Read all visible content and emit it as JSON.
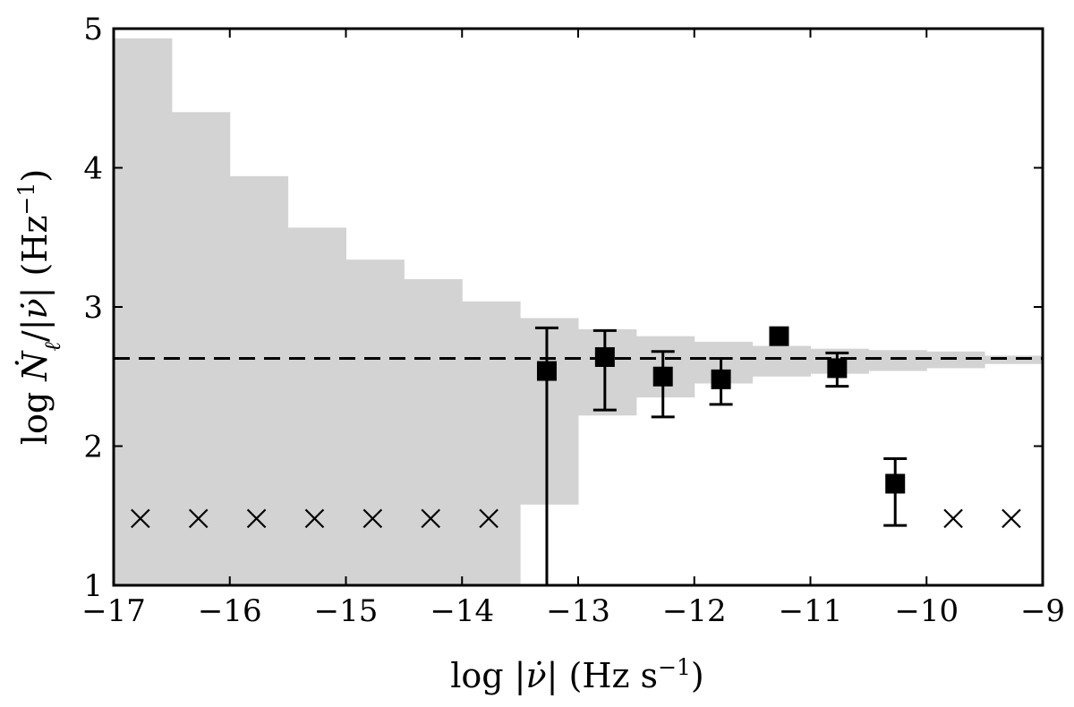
{
  "chart_data": {
    "type": "scatter",
    "xlabel": "log |ν̇| (Hz s−1)",
    "ylabel": "log Ṅℓ/|ν̇| (Hz−1)",
    "xlim": [
      -17,
      -9
    ],
    "ylim": [
      1,
      5
    ],
    "x_ticks": [
      -17,
      -16,
      -15,
      -14,
      -13,
      -12,
      -11,
      -10,
      -9
    ],
    "x_tick_labels": [
      "−17",
      "−16",
      "−15",
      "−14",
      "−13",
      "−12",
      "−11",
      "−10",
      "−9"
    ],
    "y_ticks": [
      1,
      2,
      3,
      4,
      5
    ],
    "y_tick_labels": [
      "1",
      "2",
      "3",
      "4",
      "5"
    ],
    "grid": false,
    "reference_line": {
      "y": 2.63,
      "style": "dashed"
    },
    "shaded_band": {
      "bin_edges": [
        -17,
        -16.5,
        -16,
        -15.5,
        -15,
        -14.5,
        -14,
        -13.5,
        -13,
        -12.5,
        -12,
        -11.5,
        -11,
        -10.5,
        -10,
        -9.5,
        -9
      ],
      "upper": [
        4.93,
        4.4,
        3.94,
        3.57,
        3.34,
        3.2,
        3.04,
        2.92,
        2.84,
        2.79,
        2.75,
        2.72,
        2.7,
        2.69,
        2.68,
        2.65
      ],
      "lower": [
        1.0,
        1.0,
        1.0,
        1.0,
        1.0,
        1.0,
        1.0,
        1.58,
        2.22,
        2.35,
        2.45,
        2.5,
        2.52,
        2.54,
        2.56,
        2.59
      ],
      "color": "#d3d3d3"
    },
    "measurements": [
      {
        "x": -13.27,
        "y": 2.54,
        "yerr_low": 1.0,
        "yerr_high": 2.85
      },
      {
        "x": -12.77,
        "y": 2.64,
        "yerr_low": 2.26,
        "yerr_high": 2.83
      },
      {
        "x": -12.27,
        "y": 2.5,
        "yerr_low": 2.21,
        "yerr_high": 2.68
      },
      {
        "x": -11.77,
        "y": 2.48,
        "yerr_low": 2.3,
        "yerr_high": 2.63
      },
      {
        "x": -11.27,
        "y": 2.79,
        "yerr_low": 2.79,
        "yerr_high": 2.79
      },
      {
        "x": -10.77,
        "y": 2.56,
        "yerr_low": 2.43,
        "yerr_high": 2.67
      },
      {
        "x": -10.27,
        "y": 1.73,
        "yerr_low": 1.43,
        "yerr_high": 1.91
      }
    ],
    "upper_limits": [
      {
        "x": -16.77,
        "y": 1.48
      },
      {
        "x": -16.27,
        "y": 1.48
      },
      {
        "x": -15.77,
        "y": 1.48
      },
      {
        "x": -15.27,
        "y": 1.48
      },
      {
        "x": -14.77,
        "y": 1.48
      },
      {
        "x": -14.27,
        "y": 1.48
      },
      {
        "x": -13.77,
        "y": 1.48
      },
      {
        "x": -9.77,
        "y": 1.48
      },
      {
        "x": -9.27,
        "y": 1.48
      }
    ],
    "colors": {
      "band": "#d3d3d3",
      "markers": "#000000",
      "axes": "#000000"
    }
  }
}
